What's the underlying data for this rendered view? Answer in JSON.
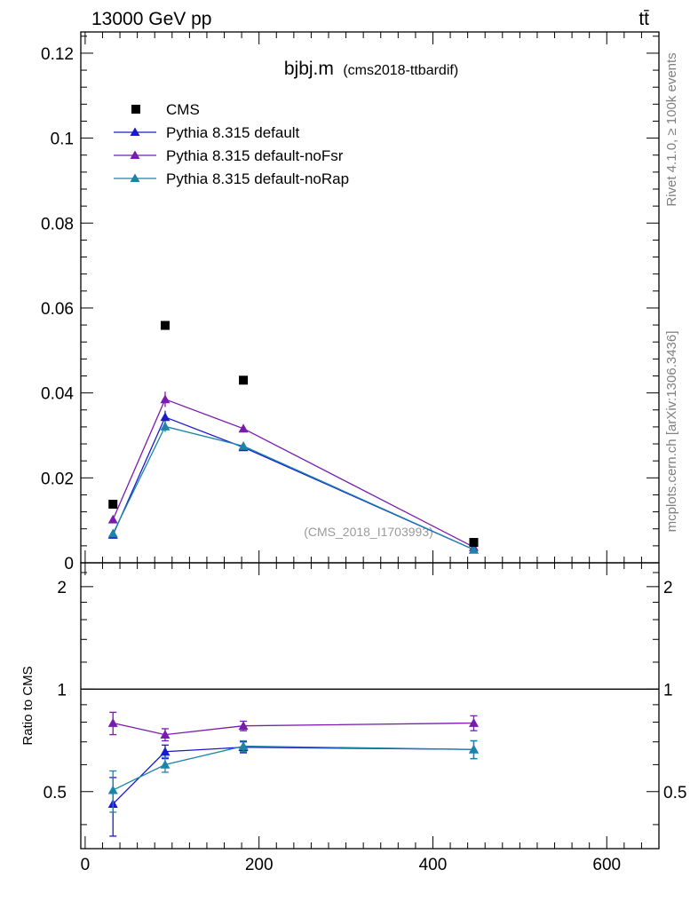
{
  "header": {
    "energy_label": "13000 GeV pp",
    "process_label": "tt̄"
  },
  "side_labels": {
    "rivet": "Rivet 4.1.0, ≥ 100k events",
    "mcplots": "mcplots.cern.ch [arXiv:1306.3436]"
  },
  "chart_data": {
    "type": "line",
    "title": "bjbj.m",
    "subtitle": "(cms2018-ttbardif)",
    "watermark": "(CMS_2018_I1703993)",
    "xlabel": "",
    "ylabel": "",
    "ratio_ylabel": "Ratio to CMS",
    "xlim": [
      -5,
      660
    ],
    "ylim": [
      0,
      0.125
    ],
    "ratio_ylim": [
      0.34,
      2.35
    ],
    "x_ticks": [
      0,
      200,
      400,
      600
    ],
    "x_tick_labels": [
      "0",
      "200",
      "400",
      "600"
    ],
    "y_ticks": [
      0,
      0.02,
      0.04,
      0.06,
      0.08,
      0.1,
      0.12
    ],
    "y_tick_labels": [
      "0",
      "0.02",
      "0.04",
      "0.06",
      "0.08",
      "0.1",
      "0.12"
    ],
    "ratio_ticks": [
      0.5,
      1,
      2
    ],
    "ratio_tick_labels": [
      "0.5",
      "1",
      "2"
    ],
    "x": [
      32,
      92,
      182,
      447
    ],
    "data": {
      "name": "CMS",
      "color": "#000000",
      "values": [
        0.0138,
        0.0559,
        0.043,
        0.0048
      ]
    },
    "series": [
      {
        "name": "Pythia 8.315 default",
        "color": "#1a1acc",
        "values": [
          0.0066,
          0.0343,
          0.0272,
          0.0031
        ],
        "errors": [
          0.0005,
          0.0015,
          0.0008,
          0.0003
        ],
        "ratio": [
          0.46,
          0.655,
          0.675,
          0.665
        ],
        "ratio_errors": [
          0.09,
          0.03,
          0.025,
          0.04
        ]
      },
      {
        "name": "Pythia 8.315 default-noFsr",
        "color": "#7a1ab0",
        "values": [
          0.0102,
          0.0385,
          0.0316,
          0.0037
        ],
        "errors": [
          0.0006,
          0.0018,
          0.0009,
          0.0003
        ],
        "ratio": [
          0.795,
          0.735,
          0.78,
          0.795
        ],
        "ratio_errors": [
          0.06,
          0.03,
          0.025,
          0.04
        ]
      },
      {
        "name": "Pythia 8.315 default-noRap",
        "color": "#1a85a8",
        "values": [
          0.0069,
          0.0321,
          0.0275,
          0.0031
        ],
        "errors": [
          0.0005,
          0.0013,
          0.0008,
          0.0003
        ],
        "ratio": [
          0.505,
          0.6,
          0.68,
          0.665
        ],
        "ratio_errors": [
          0.07,
          0.03,
          0.025,
          0.04
        ]
      }
    ]
  }
}
